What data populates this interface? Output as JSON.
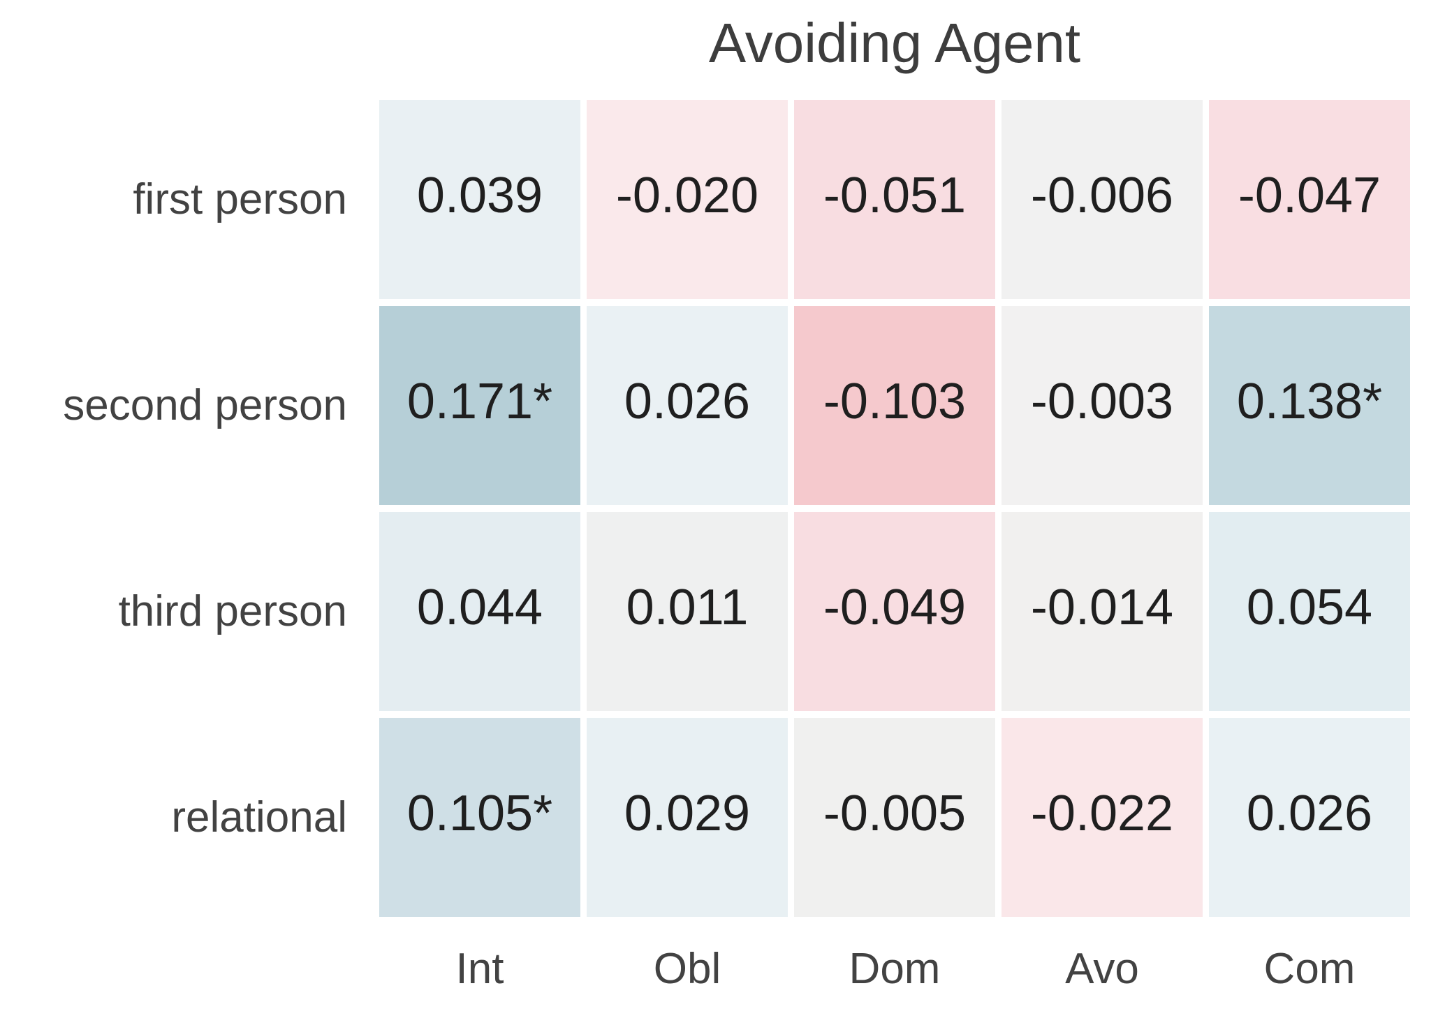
{
  "chart_data": {
    "type": "heatmap",
    "title": "Avoiding Agent",
    "rows": [
      "first person",
      "second person",
      "third person",
      "relational"
    ],
    "columns": [
      "Int",
      "Obl",
      "Dom",
      "Avo",
      "Com"
    ],
    "legend_position": "none",
    "grid": false,
    "cells": [
      [
        {
          "label": "0.039",
          "value": 0.039,
          "significant": false,
          "color": "#e9f0f3"
        },
        {
          "label": "-0.020",
          "value": -0.02,
          "significant": false,
          "color": "#fae9eb"
        },
        {
          "label": "-0.051",
          "value": -0.051,
          "significant": false,
          "color": "#f8dde1"
        },
        {
          "label": "-0.006",
          "value": -0.006,
          "significant": false,
          "color": "#f1f1f1"
        },
        {
          "label": "-0.047",
          "value": -0.047,
          "significant": false,
          "color": "#f9dee2"
        }
      ],
      [
        {
          "label": "0.171*",
          "value": 0.171,
          "significant": true,
          "color": "#b6cfd7"
        },
        {
          "label": "0.026",
          "value": 0.026,
          "significant": false,
          "color": "#eaf1f4"
        },
        {
          "label": "-0.103",
          "value": -0.103,
          "significant": false,
          "color": "#f5c9cd"
        },
        {
          "label": "-0.003",
          "value": -0.003,
          "significant": false,
          "color": "#f2f1f1"
        },
        {
          "label": "0.138*",
          "value": 0.138,
          "significant": true,
          "color": "#c4d9e0"
        }
      ],
      [
        {
          "label": "0.044",
          "value": 0.044,
          "significant": false,
          "color": "#e4edf1"
        },
        {
          "label": "0.011",
          "value": 0.011,
          "significant": false,
          "color": "#eff0f0"
        },
        {
          "label": "-0.049",
          "value": -0.049,
          "significant": false,
          "color": "#f8dde1"
        },
        {
          "label": "-0.014",
          "value": -0.014,
          "significant": false,
          "color": "#f1f0ef"
        },
        {
          "label": "0.054",
          "value": 0.054,
          "significant": false,
          "color": "#e2edf1"
        }
      ],
      [
        {
          "label": "0.105*",
          "value": 0.105,
          "significant": true,
          "color": "#cfdfe6"
        },
        {
          "label": "0.029",
          "value": 0.029,
          "significant": false,
          "color": "#e8f0f3"
        },
        {
          "label": "-0.005",
          "value": -0.005,
          "significant": false,
          "color": "#f0f0ef"
        },
        {
          "label": "-0.022",
          "value": -0.022,
          "significant": false,
          "color": "#fae7e9"
        },
        {
          "label": "0.026",
          "value": 0.026,
          "significant": false,
          "color": "#e9f1f4"
        }
      ]
    ],
    "styles": {
      "background": "#ffffff",
      "title_color": "#3d3d3d",
      "axis_label_color": "#424242",
      "value_text_color": "#1f1f1f",
      "cell_gap_color": "#ffffff",
      "positive_accent": "#b6cfd7",
      "negative_accent": "#f5c9cd"
    }
  }
}
